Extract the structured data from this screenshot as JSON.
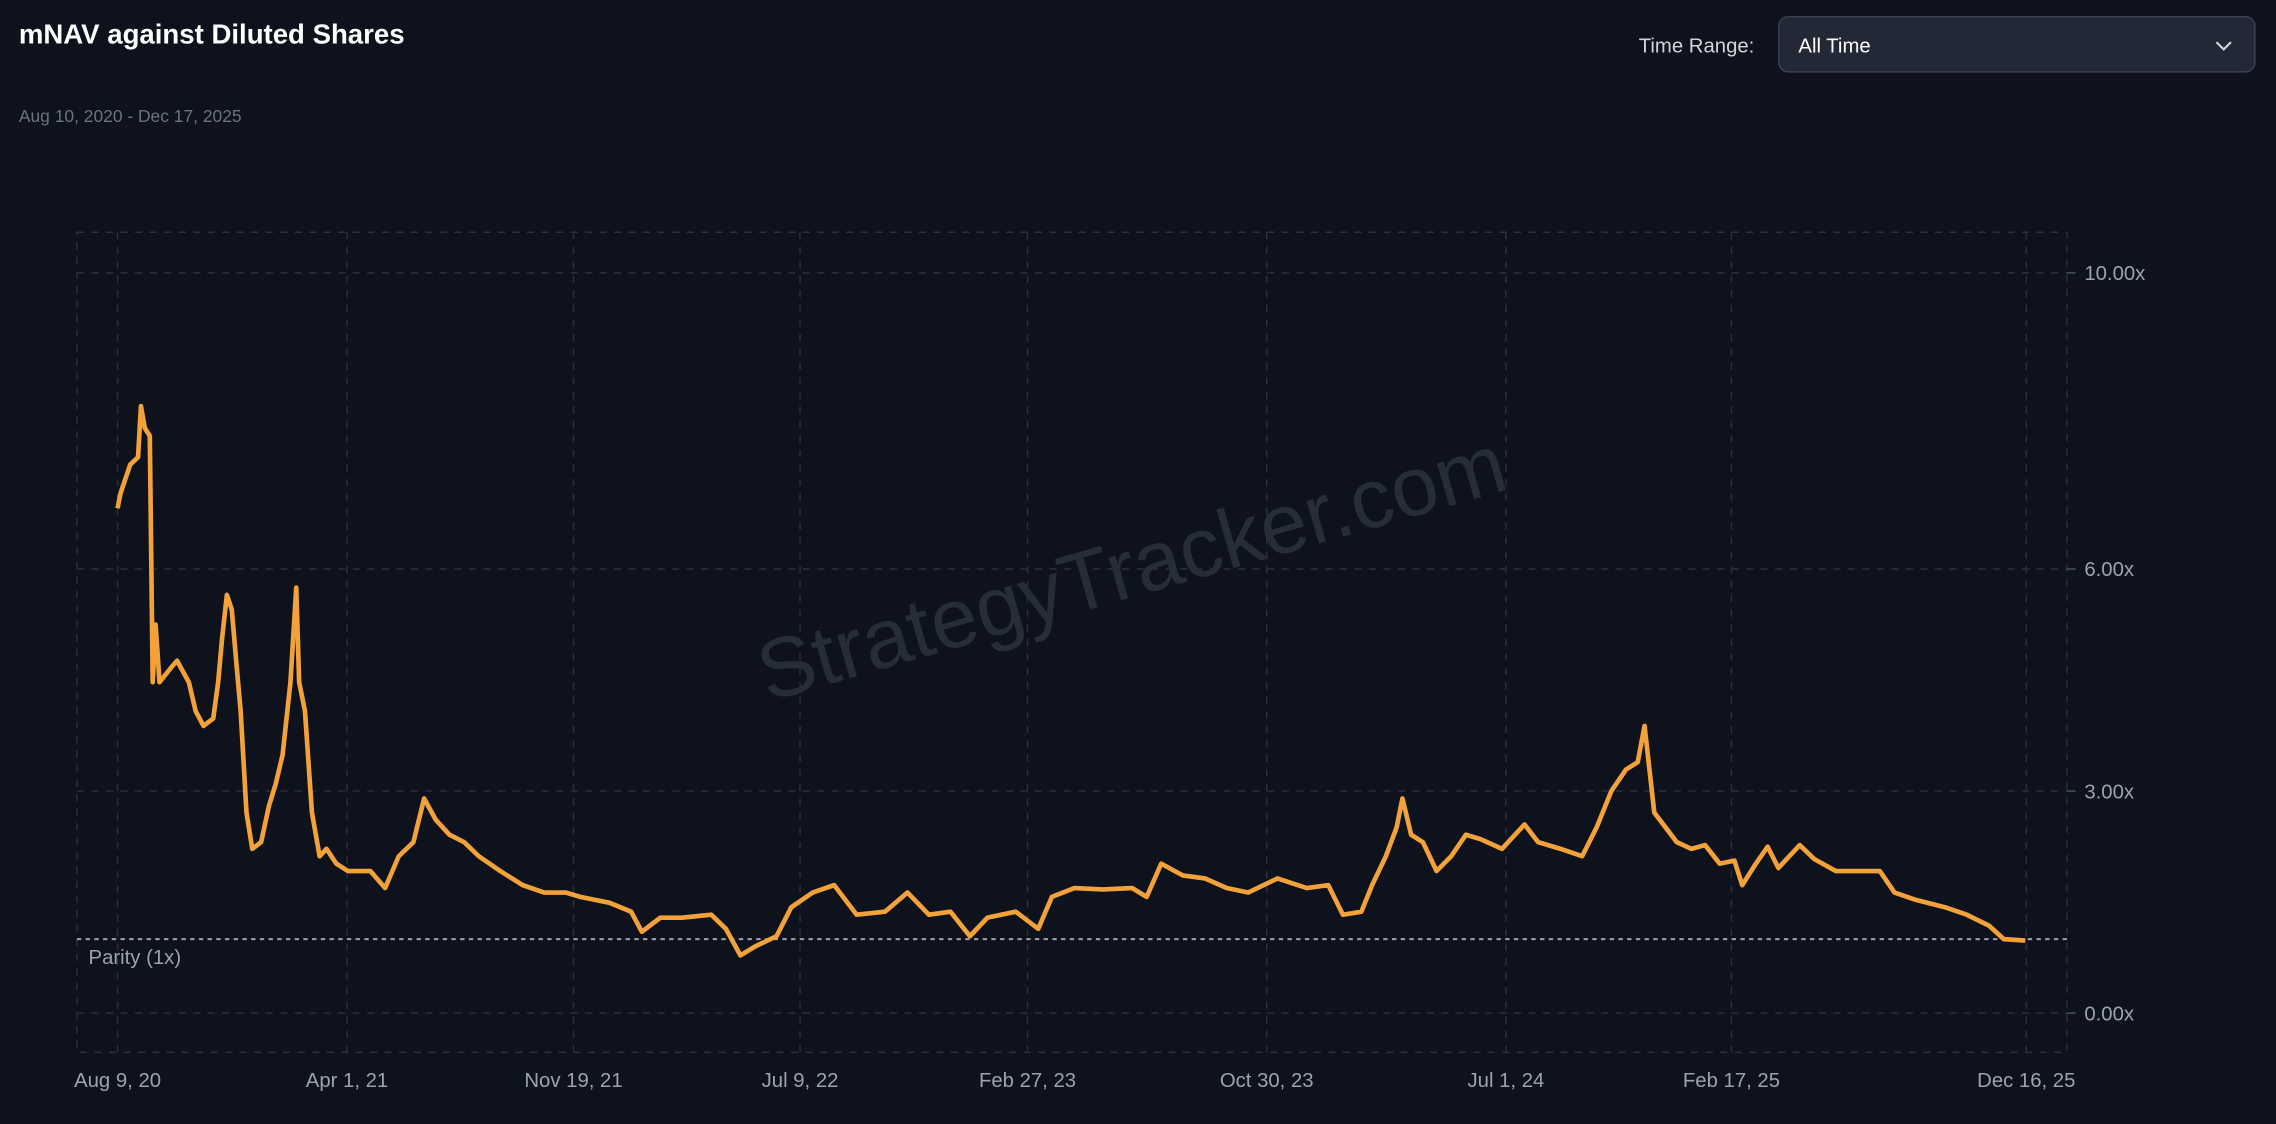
{
  "header": {
    "title": "mNAV against Diluted Shares",
    "date_range": "Aug 10, 2020 - Dec 17, 2025",
    "time_range_label": "Time Range:",
    "time_range_value": "All Time",
    "time_range_icon": "chevron-down-icon"
  },
  "watermark": "StrategyTracker.com",
  "colors": {
    "line": "#f3a23a",
    "background": "#0e121c",
    "grid": "#2a303c",
    "parity": "#9ca3af"
  },
  "chart_data": {
    "type": "line",
    "title": "mNAV against Diluted Shares",
    "xlabel": "",
    "ylabel": "",
    "ylim": [
      0,
      10
    ],
    "xlim": [
      "2020-08-09",
      "2025-12-16"
    ],
    "grid": true,
    "y_axis_position": "right",
    "y_ticks": [
      {
        "value": 0,
        "label": "0.00x"
      },
      {
        "value": 3,
        "label": "3.00x"
      },
      {
        "value": 6,
        "label": "6.00x"
      },
      {
        "value": 10,
        "label": "10.00x"
      }
    ],
    "x_ticks": [
      {
        "date": "2020-08-09",
        "label": "Aug 9, 20"
      },
      {
        "date": "2021-04-01",
        "label": "Apr 1, 21"
      },
      {
        "date": "2021-11-19",
        "label": "Nov 19, 21"
      },
      {
        "date": "2022-07-09",
        "label": "Jul 9, 22"
      },
      {
        "date": "2023-02-27",
        "label": "Feb 27, 23"
      },
      {
        "date": "2023-10-30",
        "label": "Oct 30, 23"
      },
      {
        "date": "2024-07-01",
        "label": "Jul 1, 24"
      },
      {
        "date": "2025-02-17",
        "label": "Feb 17, 25"
      },
      {
        "date": "2025-12-16",
        "label": "Dec 16, 25"
      }
    ],
    "reference_line": {
      "value": 1,
      "label": "Parity (1x)"
    },
    "series": [
      {
        "x": [
          "2020-08-09",
          "2020-08-12",
          "2020-08-22",
          "2020-08-30",
          "2020-09-02",
          "2020-09-06",
          "2020-09-11",
          "2020-09-14",
          "2020-09-17",
          "2020-09-21",
          "2020-10-03",
          "2020-10-09",
          "2020-10-21",
          "2020-10-28",
          "2020-11-05",
          "2020-11-15",
          "2020-11-20",
          "2020-11-24",
          "2020-11-29",
          "2020-12-04",
          "2020-12-09",
          "2020-12-13",
          "2020-12-19",
          "2020-12-25",
          "2021-01-03",
          "2021-01-11",
          "2021-01-18",
          "2021-01-25",
          "2021-02-02",
          "2021-02-08",
          "2021-02-11",
          "2021-02-17",
          "2021-02-24",
          "2021-03-04",
          "2021-03-11",
          "2021-03-21",
          "2021-04-02",
          "2021-04-25",
          "2021-05-10",
          "2021-05-24",
          "2021-06-08",
          "2021-06-19",
          "2021-07-01",
          "2021-07-15",
          "2021-07-30",
          "2021-08-14",
          "2021-09-05",
          "2021-09-28",
          "2021-10-20",
          "2021-11-11",
          "2021-11-26",
          "2021-12-26",
          "2022-01-17",
          "2022-01-28",
          "2022-02-16",
          "2022-03-10",
          "2022-04-09",
          "2022-04-24",
          "2022-05-09",
          "2022-05-24",
          "2022-06-15",
          "2022-06-30",
          "2022-07-22",
          "2022-08-13",
          "2022-09-05",
          "2022-10-04",
          "2022-10-27",
          "2022-11-18",
          "2022-12-10",
          "2022-12-30",
          "2023-01-17",
          "2023-02-15",
          "2023-03-10",
          "2023-03-24",
          "2023-04-16",
          "2023-05-15",
          "2023-06-14",
          "2023-06-29",
          "2023-07-14",
          "2023-08-05",
          "2023-08-28",
          "2023-09-19",
          "2023-10-11",
          "2023-11-10",
          "2023-12-10",
          "2024-01-01",
          "2024-01-16",
          "2024-02-04",
          "2024-02-15",
          "2024-02-29",
          "2024-03-11",
          "2024-03-17",
          "2024-03-26",
          "2024-04-07",
          "2024-04-21",
          "2024-05-06",
          "2024-05-21",
          "2024-06-05",
          "2024-06-27",
          "2024-07-20",
          "2024-08-03",
          "2024-08-26",
          "2024-09-17",
          "2024-10-02",
          "2024-10-17",
          "2024-11-01",
          "2024-11-13",
          "2024-11-20",
          "2024-11-30",
          "2024-12-23",
          "2025-01-07",
          "2025-01-21",
          "2025-02-05",
          "2025-02-20",
          "2025-02-28",
          "2025-03-14",
          "2025-03-26",
          "2025-04-06",
          "2025-04-28",
          "2025-05-13",
          "2025-06-04",
          "2025-06-27",
          "2025-07-19",
          "2025-08-03",
          "2025-08-25",
          "2025-09-24",
          "2025-10-16",
          "2025-11-08",
          "2025-11-23",
          "2025-12-15"
        ],
        "y": [
          6.82,
          7.02,
          7.41,
          7.51,
          8.2,
          7.9,
          7.8,
          4.47,
          5.25,
          4.47,
          4.67,
          4.76,
          4.47,
          4.08,
          3.88,
          3.98,
          4.47,
          5.06,
          5.65,
          5.45,
          4.67,
          4.08,
          2.71,
          2.22,
          2.31,
          2.8,
          3.1,
          3.49,
          4.47,
          5.75,
          4.47,
          4.08,
          2.71,
          2.12,
          2.22,
          2.02,
          1.92,
          1.92,
          1.69,
          2.12,
          2.31,
          2.9,
          2.61,
          2.41,
          2.31,
          2.12,
          1.92,
          1.73,
          1.63,
          1.63,
          1.57,
          1.49,
          1.37,
          1.1,
          1.29,
          1.29,
          1.33,
          1.14,
          0.78,
          0.9,
          1.04,
          1.43,
          1.63,
          1.73,
          1.33,
          1.37,
          1.63,
          1.33,
          1.37,
          1.04,
          1.29,
          1.37,
          1.14,
          1.57,
          1.69,
          1.67,
          1.69,
          1.57,
          2.02,
          1.86,
          1.82,
          1.69,
          1.63,
          1.82,
          1.69,
          1.73,
          1.33,
          1.37,
          1.73,
          2.12,
          2.51,
          2.9,
          2.41,
          2.31,
          1.92,
          2.12,
          2.41,
          2.35,
          2.22,
          2.55,
          2.31,
          2.22,
          2.12,
          2.51,
          3.0,
          3.29,
          3.39,
          3.88,
          2.71,
          2.31,
          2.22,
          2.27,
          2.02,
          2.06,
          1.73,
          2.02,
          2.25,
          1.96,
          2.27,
          2.08,
          1.92,
          1.92,
          1.92,
          1.63,
          1.53,
          1.43,
          1.33,
          1.18,
          1.0,
          0.98
        ]
      }
    ]
  }
}
